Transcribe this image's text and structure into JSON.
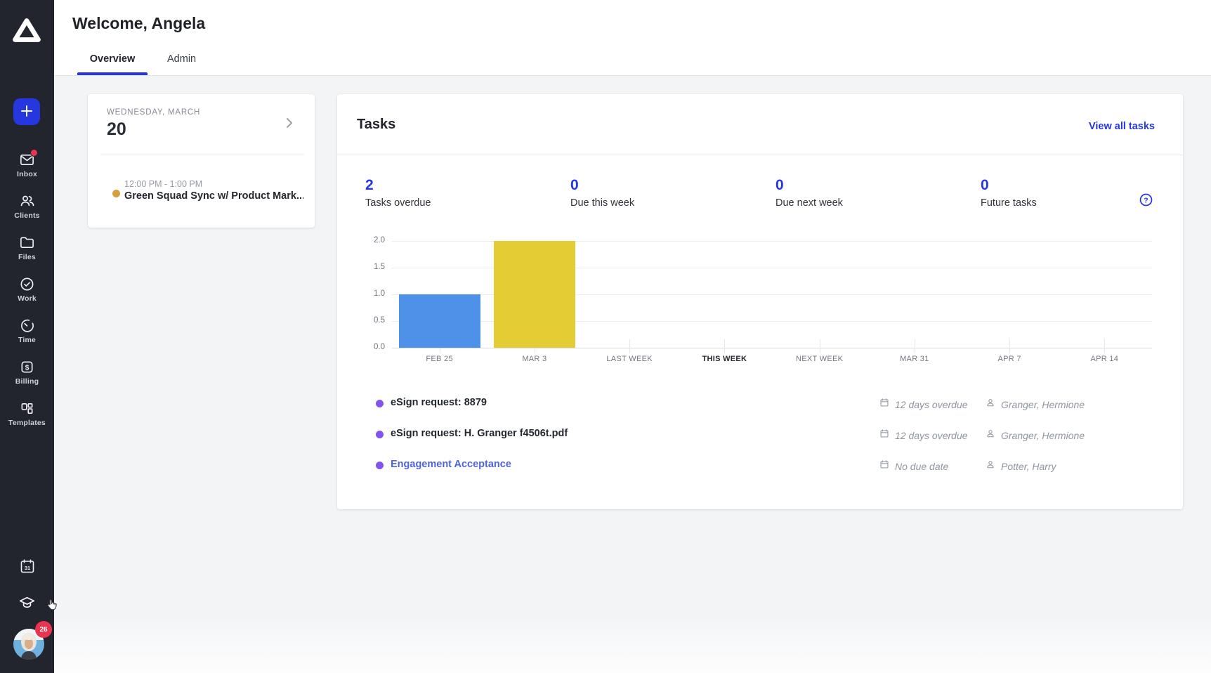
{
  "header": {
    "title": "Welcome, Angela",
    "tabs": [
      {
        "label": "Overview",
        "active": true
      },
      {
        "label": "Admin",
        "active": false
      }
    ]
  },
  "sidebar": {
    "logo_icon": "canopy-triangle-logo",
    "create_icon": "plus-icon",
    "items": [
      {
        "label": "Inbox",
        "icon": "envelope-icon",
        "notification_dot": true
      },
      {
        "label": "Clients",
        "icon": "people-icon",
        "notification_dot": false
      },
      {
        "label": "Files",
        "icon": "folder-icon",
        "notification_dot": false
      },
      {
        "label": "Work",
        "icon": "check-circle-icon",
        "notification_dot": false
      },
      {
        "label": "Time",
        "icon": "timer-icon",
        "notification_dot": false
      },
      {
        "label": "Billing",
        "icon": "dollar-square-icon",
        "notification_dot": false
      },
      {
        "label": "Templates",
        "icon": "layout-icon",
        "notification_dot": false
      }
    ],
    "bottom": {
      "calendar_icon": "calendar-31-icon",
      "education_icon": "graduation-cap-icon",
      "avatar_badge": "26"
    }
  },
  "date_card": {
    "weekday_label": "WEDNESDAY, MARCH",
    "day_number": "20",
    "event": {
      "time_range": "12:00 PM - 1:00 PM",
      "title": "Green Squad Sync w/ Product Mark...",
      "dot_color": "#d4a03c"
    }
  },
  "tasks_card": {
    "title": "Tasks",
    "view_all_label": "View all tasks",
    "stats": [
      {
        "value": "2",
        "label": "Tasks overdue"
      },
      {
        "value": "0",
        "label": "Due this week"
      },
      {
        "value": "0",
        "label": "Due next week"
      },
      {
        "value": "0",
        "label": "Future tasks"
      }
    ],
    "rows": [
      {
        "title": "eSign request: 8879",
        "is_link": false,
        "due": "12 days overdue",
        "assignee": "Granger, Hermione"
      },
      {
        "title": "eSign request: H. Granger f4506t.pdf",
        "is_link": false,
        "due": "12 days overdue",
        "assignee": "Granger, Hermione"
      },
      {
        "title": "Engagement Acceptance",
        "is_link": true,
        "due": "No due date",
        "assignee": "Potter, Harry"
      }
    ]
  },
  "chart_data": {
    "type": "bar",
    "categories": [
      "FEB 25",
      "MAR 3",
      "LAST WEEK",
      "THIS WEEK",
      "NEXT WEEK",
      "MAR 31",
      "APR 7",
      "APR 14"
    ],
    "values": [
      1,
      2,
      0,
      0,
      0,
      0,
      0,
      0
    ],
    "bar_colors": [
      "#4d92e8",
      "#e4cc35",
      null,
      null,
      null,
      null,
      null,
      null
    ],
    "emphasized_category": "THIS WEEK",
    "title": "",
    "xlabel": "",
    "ylabel": "",
    "ylim": [
      0,
      2
    ],
    "yticks": [
      0,
      0.5,
      1,
      1.5,
      2
    ],
    "grid": "horizontal",
    "legend": "none"
  },
  "colors": {
    "accent_blue": "#2737e0",
    "bar_blue": "#4d92e8",
    "bar_yellow": "#e4cc35",
    "task_dot_purple": "#8352ef",
    "event_dot_gold": "#d4a03c",
    "badge_red": "#e8344e",
    "sidebar_bg": "#22242e"
  }
}
